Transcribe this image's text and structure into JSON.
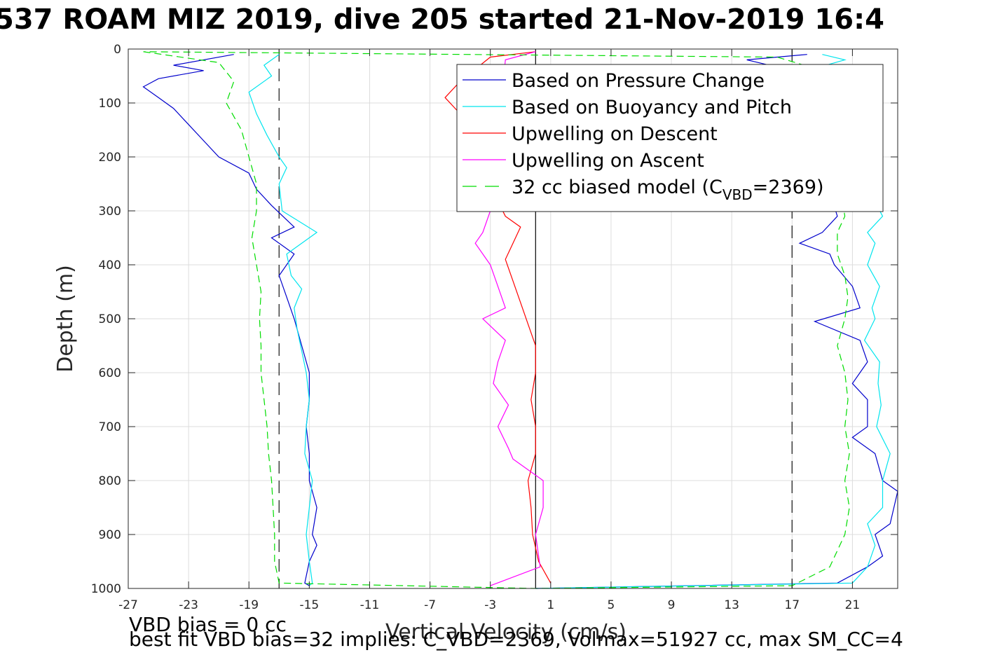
{
  "title": "537 ROAM MIZ 2019, dive 205 started 21-Nov-2019 16:4",
  "footer": {
    "line1": "VBD bias = 0 cc",
    "line2": "best fit VBD bias=32 implies: C_VBD=2369, Volmax=51927 cc, max SM_CC=4"
  },
  "chart_data": {
    "type": "line",
    "title": "537 ROAM MIZ 2019, dive 205 started 21-Nov-2019 16:4",
    "xlabel": "Vertical Velocity (cm/s)",
    "ylabel": "Depth (m)",
    "xlim": [
      -27,
      24
    ],
    "ylim": [
      0,
      1000
    ],
    "y_reversed": true,
    "grid": true,
    "xticks": [
      -27,
      -23,
      -19,
      -15,
      -11,
      -7,
      -3,
      1,
      5,
      9,
      13,
      17,
      21
    ],
    "yticks": [
      0,
      100,
      200,
      300,
      400,
      500,
      600,
      700,
      800,
      900,
      1000
    ],
    "xtick_labels": [
      "-27",
      "-23",
      "-19",
      "-15",
      "-11",
      "-7",
      "-3",
      "1",
      "5",
      "9",
      "13",
      "17",
      "21"
    ],
    "ytick_labels": [
      "0",
      "100",
      "200",
      "300",
      "400",
      "500",
      "600",
      "700",
      "800",
      "900",
      "1000"
    ],
    "reference_lines": [
      {
        "name": "zero",
        "x": 0,
        "style": "solid",
        "color": "#000000"
      },
      {
        "name": "minus-17",
        "x": -17,
        "style": "dashed",
        "color": "#000000"
      },
      {
        "name": "plus-17",
        "x": 17,
        "style": "dashed",
        "color": "#000000"
      }
    ],
    "legend": {
      "placement": "top-right",
      "entries": [
        {
          "label": "Based on Pressure Change",
          "color": "#0000cc",
          "style": "solid"
        },
        {
          "label": "Based on Buoyancy and Pitch",
          "color": "#00e5ee",
          "style": "solid"
        },
        {
          "label": "Upwelling on Descent",
          "color": "#ff0000",
          "style": "solid"
        },
        {
          "label": "Upwelling on Ascent",
          "color": "#ff00ff",
          "style": "solid"
        },
        {
          "label_main": "32 cc biased model (C",
          "label_sub": "VBD",
          "label_end": "=2369)",
          "color": "#00dd00",
          "style": "dashed"
        }
      ]
    },
    "series": [
      {
        "name": "Based on Pressure Change (descent)",
        "color": "#0000cc",
        "style": "solid",
        "points": [
          [
            -20,
            10
          ],
          [
            -24,
            30
          ],
          [
            -22,
            40
          ],
          [
            -25,
            55
          ],
          [
            -26,
            70
          ],
          [
            -25,
            90
          ],
          [
            -24,
            110
          ],
          [
            -23,
            140
          ],
          [
            -22,
            170
          ],
          [
            -21,
            200
          ],
          [
            -19,
            230
          ],
          [
            -18.5,
            260
          ],
          [
            -17.5,
            290
          ],
          [
            -16,
            330
          ],
          [
            -17.5,
            350
          ],
          [
            -16,
            380
          ],
          [
            -17,
            420
          ],
          [
            -16.5,
            460
          ],
          [
            -16,
            500
          ],
          [
            -15.5,
            550
          ],
          [
            -15,
            600
          ],
          [
            -15,
            650
          ],
          [
            -15.2,
            700
          ],
          [
            -15,
            750
          ],
          [
            -15,
            800
          ],
          [
            -14.5,
            850
          ],
          [
            -14.8,
            900
          ],
          [
            -14.5,
            920
          ],
          [
            -15,
            950
          ],
          [
            -15.3,
            990
          ],
          [
            -15,
            995
          ]
        ]
      },
      {
        "name": "Based on Buoyancy and Pitch (descent)",
        "color": "#00e5ee",
        "style": "solid",
        "points": [
          [
            -17,
            10
          ],
          [
            -18,
            30
          ],
          [
            -17.5,
            50
          ],
          [
            -19,
            80
          ],
          [
            -18.5,
            120
          ],
          [
            -17.8,
            160
          ],
          [
            -17,
            200
          ],
          [
            -16.5,
            220
          ],
          [
            -17,
            250
          ],
          [
            -16.8,
            300
          ],
          [
            -14.5,
            340
          ],
          [
            -16.5,
            380
          ],
          [
            -16.2,
            420
          ],
          [
            -15.5,
            445
          ],
          [
            -16,
            480
          ],
          [
            -15.8,
            520
          ],
          [
            -15.5,
            560
          ],
          [
            -15.2,
            600
          ],
          [
            -15,
            650
          ],
          [
            -15.2,
            700
          ],
          [
            -15.3,
            750
          ],
          [
            -14.8,
            800
          ],
          [
            -15,
            850
          ],
          [
            -15.2,
            900
          ],
          [
            -15,
            950
          ],
          [
            -14.8,
            990
          ],
          [
            -15,
            995
          ]
        ]
      },
      {
        "name": "Based on Pressure Change (ascent)",
        "color": "#0000cc",
        "style": "solid",
        "points": [
          [
            18,
            10
          ],
          [
            14,
            20
          ],
          [
            17,
            40
          ],
          [
            20,
            310
          ],
          [
            19,
            340
          ],
          [
            17.5,
            360
          ],
          [
            19.5,
            380
          ],
          [
            19.8,
            400
          ],
          [
            21,
            440
          ],
          [
            21.5,
            480
          ],
          [
            18.5,
            505
          ],
          [
            21.5,
            540
          ],
          [
            22,
            580
          ],
          [
            21,
            620
          ],
          [
            22,
            650
          ],
          [
            22,
            700
          ],
          [
            21,
            720
          ],
          [
            22.5,
            750
          ],
          [
            23,
            800
          ],
          [
            24,
            820
          ],
          [
            23.5,
            880
          ],
          [
            22.5,
            900
          ],
          [
            23,
            940
          ],
          [
            22,
            960
          ],
          [
            20,
            990
          ],
          [
            0,
            1000
          ]
        ]
      },
      {
        "name": "Based on Buoyancy and Pitch (ascent)",
        "color": "#00e5ee",
        "style": "solid",
        "points": [
          [
            19,
            10
          ],
          [
            20.5,
            20
          ],
          [
            18,
            40
          ],
          [
            23,
            310
          ],
          [
            22,
            340
          ],
          [
            22.5,
            360
          ],
          [
            22,
            400
          ],
          [
            22.8,
            440
          ],
          [
            22.3,
            480
          ],
          [
            22.5,
            500
          ],
          [
            21.8,
            540
          ],
          [
            22.8,
            580
          ],
          [
            22.7,
            620
          ],
          [
            22.9,
            660
          ],
          [
            22.6,
            700
          ],
          [
            23.5,
            750
          ],
          [
            23,
            800
          ],
          [
            23,
            850
          ],
          [
            22,
            880
          ],
          [
            22.5,
            920
          ],
          [
            22,
            960
          ],
          [
            21,
            990
          ],
          [
            0,
            1000
          ]
        ]
      },
      {
        "name": "Upwelling on Descent",
        "color": "#ff0000",
        "style": "solid",
        "points": [
          [
            0,
            5
          ],
          [
            -3,
            15
          ],
          [
            -5,
            60
          ],
          [
            -6,
            90
          ],
          [
            -5,
            120
          ],
          [
            -4.5,
            170
          ],
          [
            -2,
            310
          ],
          [
            -1,
            330
          ],
          [
            -1.5,
            360
          ],
          [
            -2,
            390
          ],
          [
            -1.5,
            430
          ],
          [
            -1,
            470
          ],
          [
            -0.5,
            510
          ],
          [
            0,
            550
          ],
          [
            0,
            600
          ],
          [
            -0.3,
            650
          ],
          [
            0,
            700
          ],
          [
            0,
            750
          ],
          [
            -0.5,
            800
          ],
          [
            -0.3,
            850
          ],
          [
            -0.2,
            900
          ],
          [
            0.2,
            950
          ],
          [
            1,
            990
          ]
        ]
      },
      {
        "name": "Upwelling on Ascent",
        "color": "#ff00ff",
        "style": "solid",
        "points": [
          [
            0,
            5
          ],
          [
            -2,
            20
          ],
          [
            -3,
            300
          ],
          [
            -3.5,
            340
          ],
          [
            -4,
            360
          ],
          [
            -3,
            400
          ],
          [
            -2.5,
            440
          ],
          [
            -2,
            480
          ],
          [
            -3.5,
            500
          ],
          [
            -2,
            540
          ],
          [
            -2.5,
            580
          ],
          [
            -2.8,
            620
          ],
          [
            -1.8,
            660
          ],
          [
            -2.5,
            700
          ],
          [
            -1.8,
            740
          ],
          [
            -1.5,
            760
          ],
          [
            0.5,
            800
          ],
          [
            0.5,
            850
          ],
          [
            0,
            900
          ],
          [
            0.3,
            960
          ],
          [
            -3,
            995
          ]
        ]
      },
      {
        "name": "32 cc biased model",
        "color": "#00dd00",
        "style": "dashed",
        "points": [
          [
            -26,
            5
          ],
          [
            -21,
            25
          ],
          [
            -20,
            60
          ],
          [
            -20.5,
            100
          ],
          [
            -19.5,
            150
          ],
          [
            -19,
            200
          ],
          [
            -18.5,
            250
          ],
          [
            -18.5,
            300
          ],
          [
            -18.8,
            350
          ],
          [
            -18.5,
            400
          ],
          [
            -18.2,
            450
          ],
          [
            -18.3,
            500
          ],
          [
            -18.2,
            550
          ],
          [
            -18.2,
            600
          ],
          [
            -18,
            650
          ],
          [
            -17.8,
            700
          ],
          [
            -17.7,
            750
          ],
          [
            -17.5,
            800
          ],
          [
            -17.4,
            850
          ],
          [
            -17.3,
            900
          ],
          [
            -17.3,
            950
          ],
          [
            -17,
            990
          ],
          [
            0,
            1000
          ],
          [
            17,
            995
          ],
          [
            19.5,
            960
          ],
          [
            20.5,
            900
          ],
          [
            20.8,
            850
          ],
          [
            20.5,
            800
          ],
          [
            20.8,
            750
          ],
          [
            20.5,
            700
          ],
          [
            20.7,
            650
          ],
          [
            20.5,
            600
          ],
          [
            20,
            550
          ],
          [
            20.5,
            500
          ],
          [
            20.7,
            460
          ],
          [
            20.5,
            420
          ],
          [
            20,
            380
          ],
          [
            20,
            340
          ],
          [
            20.5,
            310
          ],
          [
            19,
            40
          ],
          [
            16,
            15
          ],
          [
            -26,
            5
          ]
        ]
      }
    ]
  }
}
